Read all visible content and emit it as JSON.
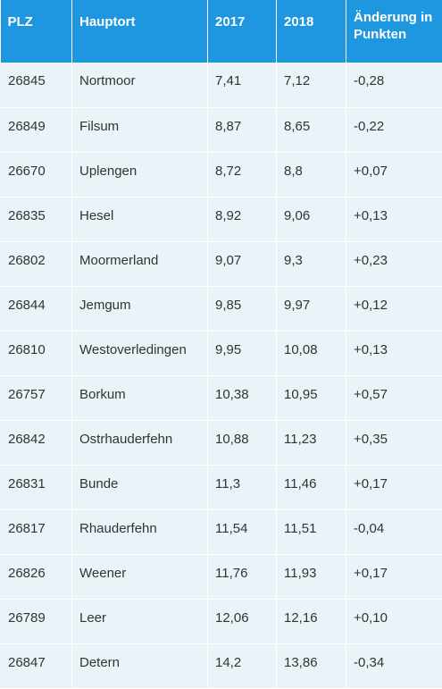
{
  "table": {
    "headers": [
      "PLZ",
      "Hauptort",
      "2017",
      "2018",
      "Änderung in Punkten"
    ],
    "rows": [
      [
        "26845",
        "Nortmoor",
        "7,41",
        "7,12",
        "-0,28"
      ],
      [
        "26849",
        "Filsum",
        "8,87",
        "8,65",
        "-0,22"
      ],
      [
        "26670",
        "Uplengen",
        "8,72",
        "8,8",
        "+0,07"
      ],
      [
        "26835",
        "Hesel",
        "8,92",
        "9,06",
        "+0,13"
      ],
      [
        "26802",
        "Moormerland",
        "9,07",
        "9,3",
        "+0,23"
      ],
      [
        "26844",
        "Jemgum",
        "9,85",
        "9,97",
        "+0,12"
      ],
      [
        "26810",
        "Westoverledingen",
        "9,95",
        "10,08",
        "+0,13"
      ],
      [
        "26757",
        "Borkum",
        "10,38",
        "10,95",
        "+0,57"
      ],
      [
        "26842",
        "Ostrhauderfehn",
        "10,88",
        "11,23",
        "+0,35"
      ],
      [
        "26831",
        "Bunde",
        "11,3",
        "11,46",
        "+0,17"
      ],
      [
        "26817",
        "Rhauderfehn",
        "11,54",
        "11,51",
        "-0,04"
      ],
      [
        "26826",
        "Weener",
        "11,76",
        "11,93",
        "+0,17"
      ],
      [
        "26789",
        "Leer",
        "12,06",
        "12,16",
        "+0,10"
      ],
      [
        "26847",
        "Detern",
        "14,2",
        "13,86",
        "-0,34"
      ]
    ]
  },
  "colors": {
    "header_bg": "#1e96e0",
    "header_text": "#ffffff",
    "row_bg": "#eaf3f8",
    "cell_text": "#333333"
  }
}
